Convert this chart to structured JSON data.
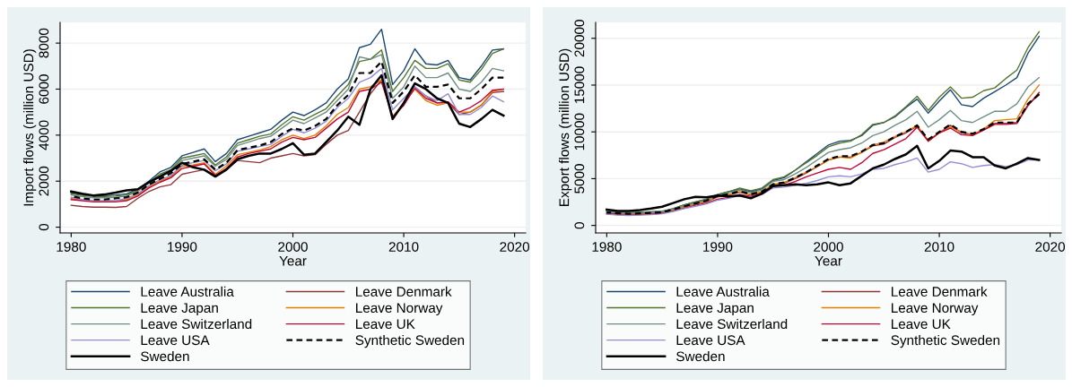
{
  "chart_data": [
    {
      "type": "line",
      "xlabel": "Year",
      "ylabel": "Import flows (million USD)",
      "xlim": [
        1979,
        2021
      ],
      "xticks": [
        1980,
        1990,
        2000,
        2010,
        2020
      ],
      "ylim": [
        -250,
        8900
      ],
      "yticks": [
        0,
        2000,
        4000,
        6000,
        8000
      ],
      "grid": "y",
      "legend": "bottom",
      "x": [
        1980,
        1981,
        1982,
        1983,
        1984,
        1985,
        1986,
        1987,
        1988,
        1989,
        1990,
        1991,
        1992,
        1993,
        1994,
        1995,
        1996,
        1997,
        1998,
        1999,
        2000,
        2001,
        2002,
        2003,
        2004,
        2005,
        2006,
        2007,
        2008,
        2009,
        2010,
        2011,
        2012,
        2013,
        2014,
        2015,
        2016,
        2017,
        2018,
        2019
      ],
      "series": [
        {
          "name": "Leave Australia",
          "color": "#1a476f",
          "line_style": "solid",
          "values": [
            1500,
            1420,
            1370,
            1370,
            1400,
            1450,
            1650,
            2000,
            2400,
            2600,
            3100,
            3250,
            3400,
            2850,
            3200,
            3800,
            3950,
            4100,
            4250,
            4650,
            5000,
            4850,
            5100,
            5400,
            6000,
            6450,
            7800,
            7950,
            8600,
            6200,
            6800,
            7750,
            7100,
            7050,
            7250,
            6500,
            6400,
            7000,
            7700,
            7750
          ]
        },
        {
          "name": "Leave Denmark",
          "color": "#90353b",
          "line_style": "solid",
          "values": [
            950,
            900,
            870,
            870,
            860,
            900,
            1250,
            1550,
            1750,
            1850,
            2300,
            2400,
            2500,
            2250,
            2500,
            2900,
            2850,
            2800,
            3000,
            3100,
            3200,
            3100,
            3150,
            3600,
            4000,
            4200,
            5000,
            5800,
            6400,
            4800,
            5300,
            6100,
            5700,
            5400,
            5400,
            4900,
            5000,
            5300,
            5850,
            5900
          ]
        },
        {
          "name": "Leave Japan",
          "color": "#55752f",
          "line_style": "solid",
          "values": [
            1450,
            1380,
            1330,
            1330,
            1350,
            1400,
            1600,
            1950,
            2300,
            2500,
            3000,
            3100,
            3200,
            2700,
            3050,
            3650,
            3800,
            3950,
            4050,
            4450,
            4800,
            4650,
            4900,
            5150,
            5700,
            6200,
            7200,
            7300,
            7700,
            5900,
            6500,
            7250,
            6900,
            6900,
            7100,
            6400,
            6300,
            6850,
            7550,
            7750
          ]
        },
        {
          "name": "Leave Norway",
          "color": "#e37e00",
          "line_style": "solid",
          "values": [
            1250,
            1180,
            1130,
            1130,
            1150,
            1200,
            1400,
            1750,
            2000,
            2200,
            2650,
            2700,
            2800,
            2300,
            2650,
            3150,
            3250,
            3350,
            3500,
            3800,
            4000,
            3850,
            4000,
            4400,
            4900,
            5200,
            6000,
            6100,
            6400,
            4800,
            5400,
            6000,
            5500,
            5300,
            5400,
            5000,
            5000,
            5300,
            5900,
            6000
          ]
        },
        {
          "name": "Leave Switzerland",
          "color": "#6e8e84",
          "line_style": "solid",
          "values": [
            1400,
            1330,
            1280,
            1280,
            1300,
            1350,
            1550,
            1900,
            2200,
            2450,
            2900,
            3000,
            3100,
            2650,
            2950,
            3550,
            3700,
            3850,
            3950,
            4300,
            4650,
            4500,
            4750,
            5000,
            5500,
            6000,
            7400,
            7300,
            7500,
            5600,
            6100,
            7000,
            6500,
            6500,
            6700,
            6000,
            5900,
            6300,
            6900,
            6800
          ]
        },
        {
          "name": "Leave UK",
          "color": "#c10534",
          "line_style": "solid",
          "values": [
            1200,
            1150,
            1100,
            1100,
            1100,
            1150,
            1350,
            1700,
            1950,
            2150,
            2550,
            2650,
            2750,
            2250,
            2550,
            3050,
            3200,
            3300,
            3400,
            3700,
            3900,
            3800,
            3900,
            4300,
            4700,
            5000,
            5900,
            6000,
            6300,
            4800,
            5300,
            6050,
            5600,
            5400,
            5450,
            5000,
            5200,
            5500,
            5950,
            6000
          ]
        },
        {
          "name": "Leave USA",
          "color": "#938dd2",
          "line_style": "solid",
          "values": [
            1300,
            1200,
            1150,
            1150,
            1150,
            1250,
            1450,
            1800,
            2050,
            2250,
            2700,
            2800,
            2900,
            2450,
            2750,
            3300,
            3400,
            3500,
            3600,
            3950,
            4250,
            4100,
            4300,
            4600,
            5200,
            5600,
            6300,
            6500,
            6900,
            5100,
            5600,
            6100,
            5700,
            5500,
            5800,
            4900,
            4900,
            5200,
            5700,
            5450
          ]
        },
        {
          "name": "Synthetic Sweden",
          "color": "#000000",
          "line_style": "dashed",
          "values": [
            1350,
            1250,
            1200,
            1200,
            1250,
            1300,
            1500,
            1850,
            2100,
            2350,
            2750,
            2850,
            2950,
            2500,
            2800,
            3350,
            3450,
            3550,
            3700,
            4050,
            4300,
            4200,
            4400,
            4700,
            5300,
            5750,
            6700,
            6700,
            7200,
            5400,
            5900,
            6600,
            6100,
            6100,
            6200,
            5600,
            5600,
            6000,
            6500,
            6500
          ]
        },
        {
          "name": "Sweden",
          "color": "#000000",
          "line_style": "solid",
          "values": [
            1550,
            1450,
            1380,
            1420,
            1500,
            1600,
            1650,
            1950,
            2200,
            2450,
            2800,
            2600,
            2500,
            2200,
            2500,
            2950,
            3100,
            3200,
            3200,
            3400,
            3650,
            3150,
            3200,
            3700,
            4200,
            4800,
            4450,
            6000,
            6600,
            4700,
            5400,
            6250,
            6000,
            5600,
            5400,
            4500,
            4350,
            4700,
            5100,
            4850
          ]
        }
      ]
    },
    {
      "type": "line",
      "xlabel": "Year",
      "ylabel": "Export flows (million USD)",
      "xlim": [
        1979,
        2021
      ],
      "xticks": [
        1980,
        1990,
        2000,
        2010,
        2020
      ],
      "ylim": [
        -800,
        21700
      ],
      "yticks": [
        0,
        5000,
        10000,
        15000,
        20000
      ],
      "grid": "y",
      "legend": "bottom",
      "x": [
        1980,
        1981,
        1982,
        1983,
        1984,
        1985,
        1986,
        1987,
        1988,
        1989,
        1990,
        1991,
        1992,
        1993,
        1994,
        1995,
        1996,
        1997,
        1998,
        1999,
        2000,
        2001,
        2002,
        2003,
        2004,
        2005,
        2006,
        2007,
        2008,
        2009,
        2010,
        2011,
        2012,
        2013,
        2014,
        2015,
        2016,
        2017,
        2018,
        2019
      ],
      "series": [
        {
          "name": "Leave Australia",
          "color": "#1a476f",
          "line_style": "solid",
          "values": [
            1500,
            1400,
            1350,
            1400,
            1450,
            1500,
            1800,
            2200,
            2500,
            2800,
            3300,
            3600,
            3900,
            3600,
            3900,
            4800,
            5100,
            5900,
            6800,
            7700,
            8600,
            9000,
            9100,
            9600,
            10700,
            11000,
            11600,
            12600,
            13500,
            12000,
            13300,
            14500,
            12900,
            12700,
            13600,
            14300,
            15000,
            15800,
            18400,
            20200
          ]
        },
        {
          "name": "Leave Denmark",
          "color": "#90353b",
          "line_style": "solid",
          "values": [
            1350,
            1250,
            1200,
            1250,
            1300,
            1350,
            1650,
            2000,
            2300,
            2550,
            3050,
            3250,
            3550,
            3250,
            3500,
            4300,
            4500,
            5000,
            5600,
            6300,
            7000,
            7300,
            7300,
            7800,
            8500,
            8700,
            9400,
            9900,
            10600,
            9100,
            9900,
            10700,
            9900,
            9700,
            10200,
            10900,
            10900,
            11000,
            12900,
            14000
          ]
        },
        {
          "name": "Leave Japan",
          "color": "#55752f",
          "line_style": "solid",
          "values": [
            1500,
            1400,
            1350,
            1400,
            1450,
            1500,
            1800,
            2200,
            2500,
            2800,
            3300,
            3600,
            4000,
            3700,
            4000,
            4900,
            5200,
            5900,
            6700,
            7500,
            8400,
            8800,
            9000,
            9700,
            10800,
            11000,
            11700,
            12700,
            13800,
            12300,
            13700,
            14800,
            13600,
            13700,
            14400,
            14700,
            15700,
            16600,
            19000,
            20700
          ]
        },
        {
          "name": "Leave Norway",
          "color": "#e37e00",
          "line_style": "solid",
          "values": [
            null,
            null,
            1150,
            1200,
            1250,
            1350,
            1650,
            2000,
            2300,
            2600,
            3100,
            3300,
            3600,
            3300,
            3600,
            4400,
            4600,
            5100,
            5700,
            6300,
            7000,
            7300,
            7200,
            7800,
            8600,
            8900,
            9500,
            10000,
            10700,
            9000,
            9900,
            10500,
            10000,
            9700,
            10300,
            11200,
            11300,
            11400,
            13500,
            15000
          ]
        },
        {
          "name": "Leave Switzerland",
          "color": "#6e8e84",
          "line_style": "solid",
          "values": [
            1450,
            1350,
            1300,
            1350,
            1400,
            1450,
            1750,
            2100,
            2400,
            2700,
            3200,
            3500,
            3800,
            3500,
            3800,
            4700,
            4900,
            5500,
            6200,
            7000,
            7800,
            8100,
            8300,
            8800,
            9600,
            10000,
            10700,
            11300,
            12200,
            10500,
            11300,
            12300,
            11200,
            11000,
            11600,
            12200,
            12200,
            13000,
            14800,
            15800
          ]
        },
        {
          "name": "Leave UK",
          "color": "#c10534",
          "line_style": "solid",
          "values": [
            1250,
            1150,
            1100,
            1150,
            1200,
            1300,
            1550,
            1850,
            2150,
            2400,
            2800,
            3000,
            3300,
            3100,
            3400,
            4200,
            4300,
            4700,
            5200,
            5600,
            6000,
            6200,
            6000,
            6700,
            7700,
            8100,
            8700,
            9300,
            10500,
            9000,
            9900,
            10400,
            9700,
            9600,
            10200,
            10800,
            10800,
            10900,
            12800,
            14200
          ]
        },
        {
          "name": "Leave USA",
          "color": "#938dd2",
          "line_style": "solid",
          "values": [
            1200,
            1100,
            1050,
            1100,
            1150,
            1250,
            1500,
            1800,
            2050,
            2300,
            2700,
            2900,
            3200,
            3000,
            3300,
            4000,
            4100,
            4300,
            4500,
            4800,
            5200,
            5300,
            5200,
            5500,
            6000,
            6100,
            6500,
            6800,
            7200,
            5700,
            6000,
            6800,
            6600,
            6200,
            6400,
            6500,
            6300,
            6500,
            7000,
            7000
          ]
        },
        {
          "name": "Synthetic Sweden",
          "color": "#000000",
          "line_style": "dashed",
          "values": [
            1400,
            1300,
            1250,
            1300,
            1350,
            1400,
            1700,
            2050,
            2350,
            2650,
            3150,
            3350,
            3650,
            3350,
            3600,
            4400,
            4600,
            5100,
            5700,
            6400,
            7100,
            7400,
            7400,
            7900,
            8600,
            8800,
            9500,
            10000,
            10700,
            9200,
            10000,
            10800,
            10000,
            9800,
            10300,
            11000,
            11000,
            11000,
            13000,
            14000
          ]
        },
        {
          "name": "Sweden",
          "color": "#000000",
          "line_style": "solid",
          "values": [
            1700,
            1550,
            1550,
            1650,
            1800,
            2000,
            2400,
            2800,
            3050,
            3000,
            3200,
            3100,
            3200,
            2900,
            3400,
            4200,
            4300,
            4400,
            4300,
            4400,
            4600,
            4300,
            4500,
            5300,
            6100,
            6500,
            7100,
            7600,
            8500,
            6100,
            6900,
            8000,
            7900,
            7300,
            7300,
            6400,
            6100,
            6600,
            7200,
            7000
          ]
        }
      ]
    }
  ]
}
